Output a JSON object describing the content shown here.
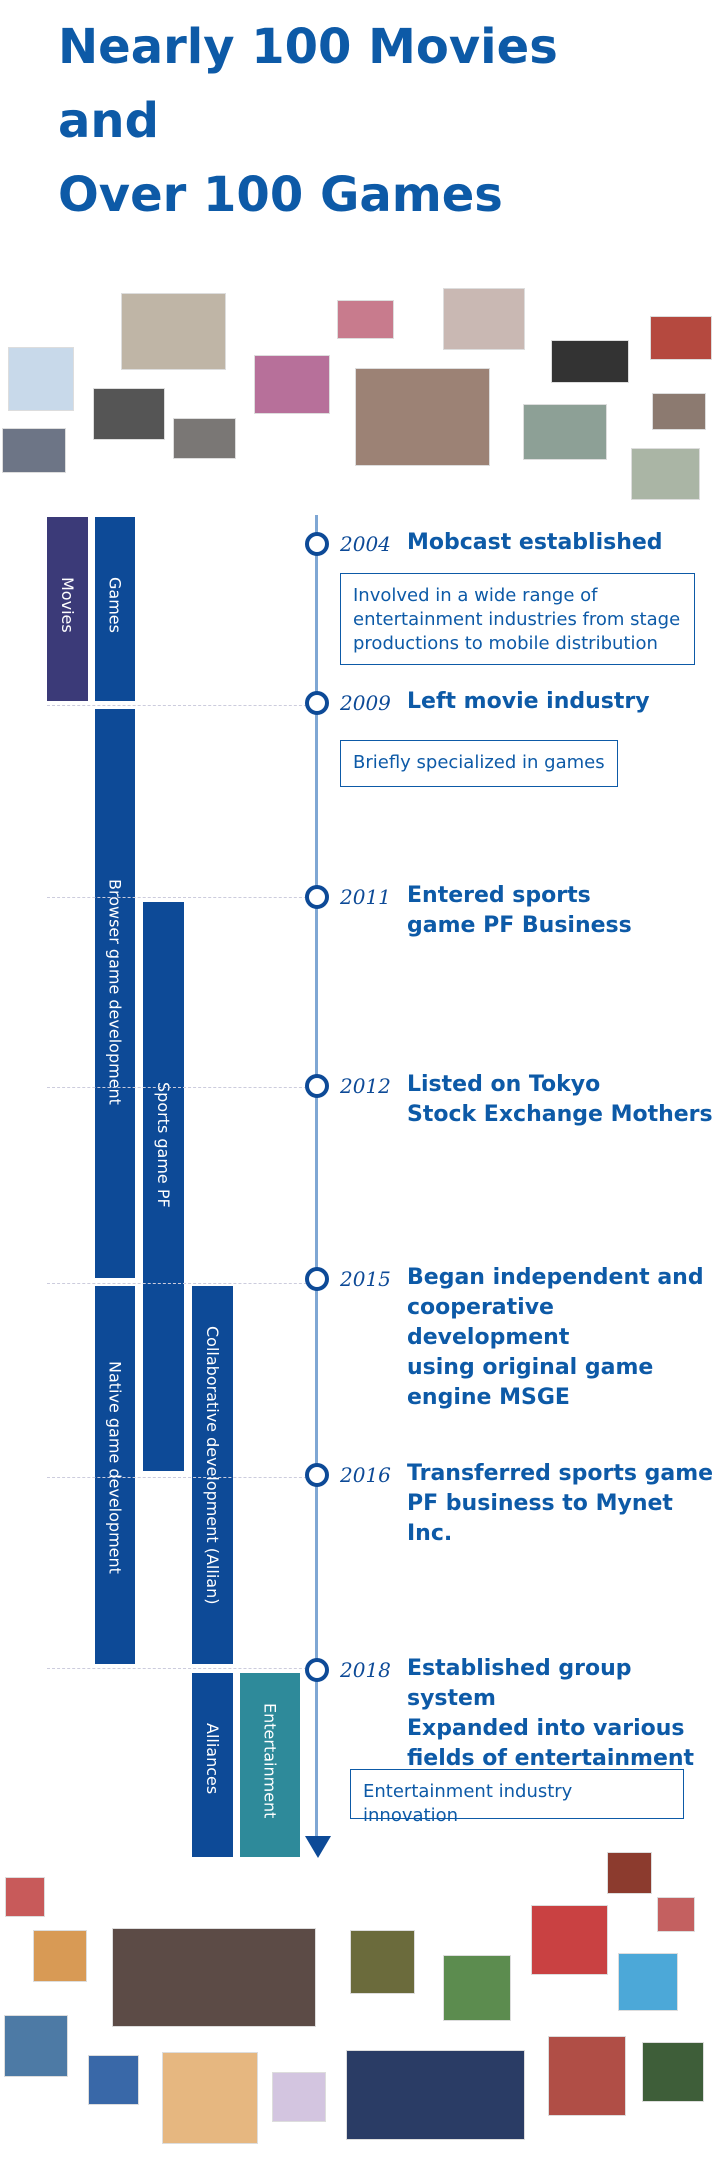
{
  "header": {
    "title_lines": [
      "Nearly 100 Movies",
      "and",
      "Over 100 Games"
    ]
  },
  "bars": [
    "Movies",
    "Games",
    "Browser game development",
    "Sports game PF",
    "Native game development",
    "Collaborative development (Allian)",
    "Alliances",
    "Entertainment"
  ],
  "events": [
    {
      "year": "2004",
      "title_lines": [
        "Mobcast established"
      ],
      "note": "Involved in a wide range of entertainment industries from stage productions to mobile distribution"
    },
    {
      "year": "2009",
      "title_lines": [
        "Left movie industry"
      ],
      "note": "Briefly specialized in games"
    },
    {
      "year": "2011",
      "title_lines": [
        "Entered sports",
        "game PF Business"
      ]
    },
    {
      "year": "2012",
      "title_lines": [
        "Listed on Tokyo",
        "Stock Exchange Mothers"
      ]
    },
    {
      "year": "2015",
      "title_lines": [
        "Began independent and",
        "cooperative development",
        "using original game",
        "engine MSGE"
      ]
    },
    {
      "year": "2016",
      "title_lines": [
        "Transferred sports game",
        "PF business to Mynet Inc."
      ]
    },
    {
      "year": "2018",
      "title_lines": [
        "Established group system",
        "Expanded into various",
        "fields of entertainment"
      ],
      "note": "Entertainment industry innovation"
    }
  ]
}
